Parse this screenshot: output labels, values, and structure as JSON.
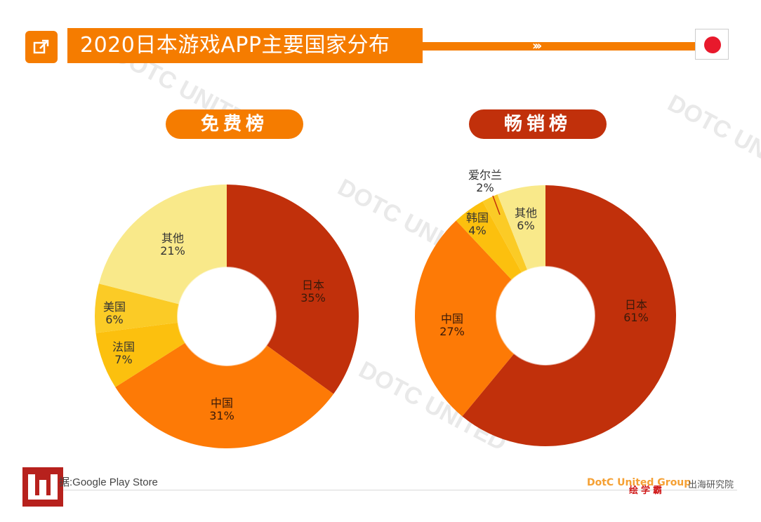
{
  "title": "2020日本游戏APP主要国家分布",
  "source_label": "据:Google Play Store",
  "brand_text": "DotC United Group",
  "brand_suffix": "出海研究院",
  "badge_text": "绘学霸",
  "watermark": "DOTC UNITED",
  "colors": {
    "accent": "#f57c00",
    "dark_red": "#c1300b",
    "orange": "#fd7a06",
    "yellow": "#fcc00e",
    "amber": "#fbcb26",
    "pale_yellow": "#f9e98a",
    "flag_red": "#e8192c"
  },
  "icons": {
    "title": "external-link-icon",
    "flag": "japan-flag-icon"
  },
  "chart_data": [
    {
      "type": "pie",
      "variant": "donut",
      "title": "免费榜",
      "slices": [
        {
          "label": "日本",
          "value": 35,
          "value_label": "35%",
          "color": "#c1300b"
        },
        {
          "label": "中国",
          "value": 31,
          "value_label": "31%",
          "color": "#fd7a06"
        },
        {
          "label": "法国",
          "value": 7,
          "value_label": "7%",
          "color": "#fcc00e"
        },
        {
          "label": "美国",
          "value": 6,
          "value_label": "6%",
          "color": "#fbcb26"
        },
        {
          "label": "其他",
          "value": 21,
          "value_label": "21%",
          "color": "#f9e98a"
        }
      ]
    },
    {
      "type": "pie",
      "variant": "donut",
      "title": "畅销榜",
      "slices": [
        {
          "label": "日本",
          "value": 61,
          "value_label": "61%",
          "color": "#c1300b"
        },
        {
          "label": "中国",
          "value": 27,
          "value_label": "27%",
          "color": "#fd7a06"
        },
        {
          "label": "韩国",
          "value": 4,
          "value_label": "4%",
          "color": "#fcc00e"
        },
        {
          "label": "爱尔兰",
          "value": 2,
          "value_label": "2%",
          "color": "#fbcb26"
        },
        {
          "label": "其他",
          "value": 6,
          "value_label": "6%",
          "color": "#f9e98a"
        }
      ]
    }
  ]
}
